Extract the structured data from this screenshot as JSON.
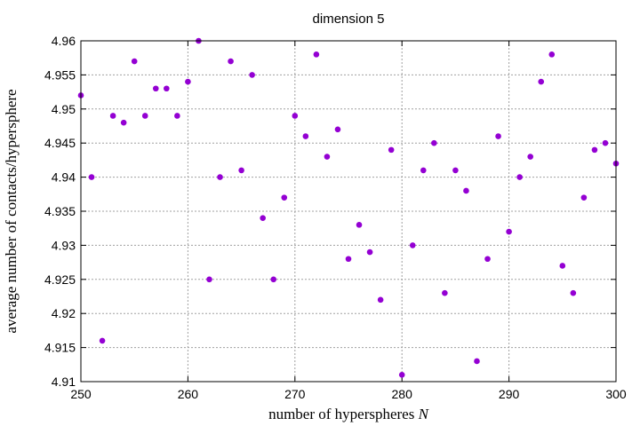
{
  "chart_data": {
    "type": "scatter",
    "title": "dimension 5",
    "xlabel": "number of hyperspheres",
    "xlabel_var": "N",
    "ylabel": "average number of contacts/hypersphere",
    "xlim": [
      250,
      300
    ],
    "ylim": [
      4.91,
      4.96
    ],
    "x_ticks": [
      250,
      260,
      270,
      280,
      290,
      300
    ],
    "x_tick_labels": [
      "250",
      "260",
      "270",
      "280",
      "290",
      "300"
    ],
    "y_ticks": [
      4.91,
      4.915,
      4.92,
      4.925,
      4.93,
      4.935,
      4.94,
      4.945,
      4.95,
      4.955,
      4.96
    ],
    "y_tick_labels": [
      "4.91",
      "4.915",
      "4.92",
      "4.925",
      "4.93",
      "4.935",
      "4.94",
      "4.945",
      "4.95",
      "4.955",
      "4.96"
    ],
    "grid": true,
    "marker_color": "#9400d3",
    "points": [
      {
        "x": 250,
        "y": 4.952
      },
      {
        "x": 251,
        "y": 4.94
      },
      {
        "x": 252,
        "y": 4.916
      },
      {
        "x": 253,
        "y": 4.949
      },
      {
        "x": 254,
        "y": 4.948
      },
      {
        "x": 255,
        "y": 4.957
      },
      {
        "x": 256,
        "y": 4.949
      },
      {
        "x": 257,
        "y": 4.953
      },
      {
        "x": 258,
        "y": 4.953
      },
      {
        "x": 259,
        "y": 4.949
      },
      {
        "x": 260,
        "y": 4.954
      },
      {
        "x": 261,
        "y": 4.96
      },
      {
        "x": 262,
        "y": 4.925
      },
      {
        "x": 263,
        "y": 4.94
      },
      {
        "x": 264,
        "y": 4.957
      },
      {
        "x": 265,
        "y": 4.941
      },
      {
        "x": 266,
        "y": 4.955
      },
      {
        "x": 267,
        "y": 4.934
      },
      {
        "x": 268,
        "y": 4.925
      },
      {
        "x": 269,
        "y": 4.937
      },
      {
        "x": 270,
        "y": 4.949
      },
      {
        "x": 271,
        "y": 4.946
      },
      {
        "x": 272,
        "y": 4.958
      },
      {
        "x": 273,
        "y": 4.943
      },
      {
        "x": 274,
        "y": 4.947
      },
      {
        "x": 275,
        "y": 4.928
      },
      {
        "x": 276,
        "y": 4.933
      },
      {
        "x": 277,
        "y": 4.929
      },
      {
        "x": 278,
        "y": 4.922
      },
      {
        "x": 279,
        "y": 4.944
      },
      {
        "x": 280,
        "y": 4.911
      },
      {
        "x": 281,
        "y": 4.93
      },
      {
        "x": 282,
        "y": 4.941
      },
      {
        "x": 283,
        "y": 4.945
      },
      {
        "x": 284,
        "y": 4.923
      },
      {
        "x": 285,
        "y": 4.941
      },
      {
        "x": 286,
        "y": 4.938
      },
      {
        "x": 287,
        "y": 4.913
      },
      {
        "x": 288,
        "y": 4.928
      },
      {
        "x": 289,
        "y": 4.946
      },
      {
        "x": 290,
        "y": 4.932
      },
      {
        "x": 291,
        "y": 4.94
      },
      {
        "x": 292,
        "y": 4.943
      },
      {
        "x": 293,
        "y": 4.954
      },
      {
        "x": 294,
        "y": 4.958
      },
      {
        "x": 295,
        "y": 4.927
      },
      {
        "x": 296,
        "y": 4.923
      },
      {
        "x": 297,
        "y": 4.937
      },
      {
        "x": 298,
        "y": 4.944
      },
      {
        "x": 299,
        "y": 4.945
      },
      {
        "x": 300,
        "y": 4.942
      }
    ]
  }
}
